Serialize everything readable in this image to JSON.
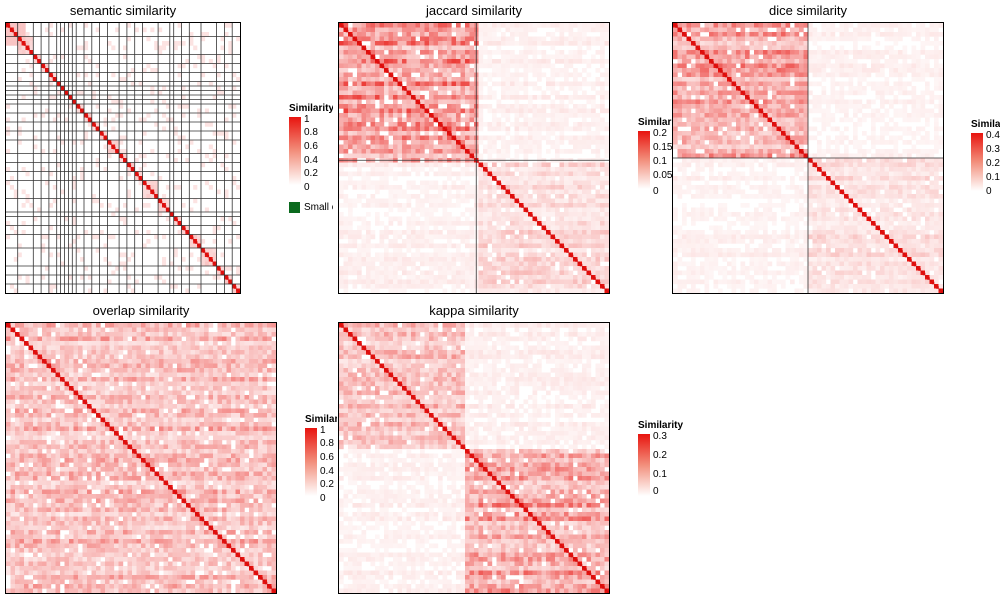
{
  "chart_data": [
    {
      "type": "heatmap",
      "title": "semantic similarity",
      "matrix_size": 120,
      "block_boundaries": [
        6,
        14,
        18,
        22,
        26,
        28,
        30,
        32,
        34,
        36,
        40,
        44,
        48,
        52,
        58,
        62,
        66,
        70,
        78,
        84,
        86,
        90,
        94,
        100,
        108,
        112,
        116
      ],
      "block_cells": [
        1,
        2
      ],
      "background_value": 0.08,
      "within_block_value": 0.5,
      "colorscale": [
        "#ffffff",
        "#e8140f"
      ],
      "legend": {
        "title": "Similarity",
        "ticks": [
          "1",
          "0.8",
          "0.6",
          "0.4",
          "0.2",
          "0"
        ],
        "range": [
          0,
          1
        ],
        "extra": {
          "label": "Small clusters",
          "color": "#0b6a1e"
        }
      }
    },
    {
      "type": "heatmap",
      "title": "jaccard similarity",
      "matrix_size": 120,
      "block_boundaries": [
        61,
        120
      ],
      "block_cells": [
        1,
        2
      ],
      "background_value": 0.05,
      "within_block_value": 0.2,
      "colorscale": [
        "#ffffff",
        "#e8140f"
      ],
      "legend": {
        "title": "Similarity",
        "ticks": [
          "0.2",
          "0.15",
          "0.1",
          "0.05",
          "0"
        ],
        "range": [
          0,
          0.25
        ]
      }
    },
    {
      "type": "heatmap",
      "title": "dice similarity",
      "matrix_size": 120,
      "block_boundaries": [
        60,
        120
      ],
      "block_cells": [
        1,
        2
      ],
      "background_value": 0.08,
      "within_block_value": 0.35,
      "colorscale": [
        "#ffffff",
        "#e8140f"
      ],
      "legend": {
        "title": "Similarity",
        "ticks": [
          "0.4",
          "0.3",
          "0.2",
          "0.1",
          "0"
        ],
        "range": [
          0,
          0.4
        ]
      }
    },
    {
      "type": "heatmap",
      "title": "overlap similarity",
      "matrix_size": 120,
      "block_boundaries": [],
      "block_cells": [],
      "background_value": 0.3,
      "within_block_value": 0.6,
      "colorscale": [
        "#ffffff",
        "#e8140f"
      ],
      "legend": {
        "title": "Similarity",
        "ticks": [
          "1",
          "0.8",
          "0.6",
          "0.4",
          "0.2",
          "0"
        ],
        "range": [
          0,
          1
        ]
      }
    },
    {
      "type": "heatmap",
      "title": "kappa similarity",
      "matrix_size": 120,
      "block_boundaries": [],
      "block_cells": [],
      "background_value": 0.04,
      "within_block_value": 0.2,
      "colorscale": [
        "#ffffff",
        "#e8140f"
      ],
      "legend": {
        "title": "Similarity",
        "ticks": [
          "0.3",
          "0.2",
          "0.1",
          "0"
        ],
        "range": [
          0,
          0.3
        ]
      }
    }
  ]
}
